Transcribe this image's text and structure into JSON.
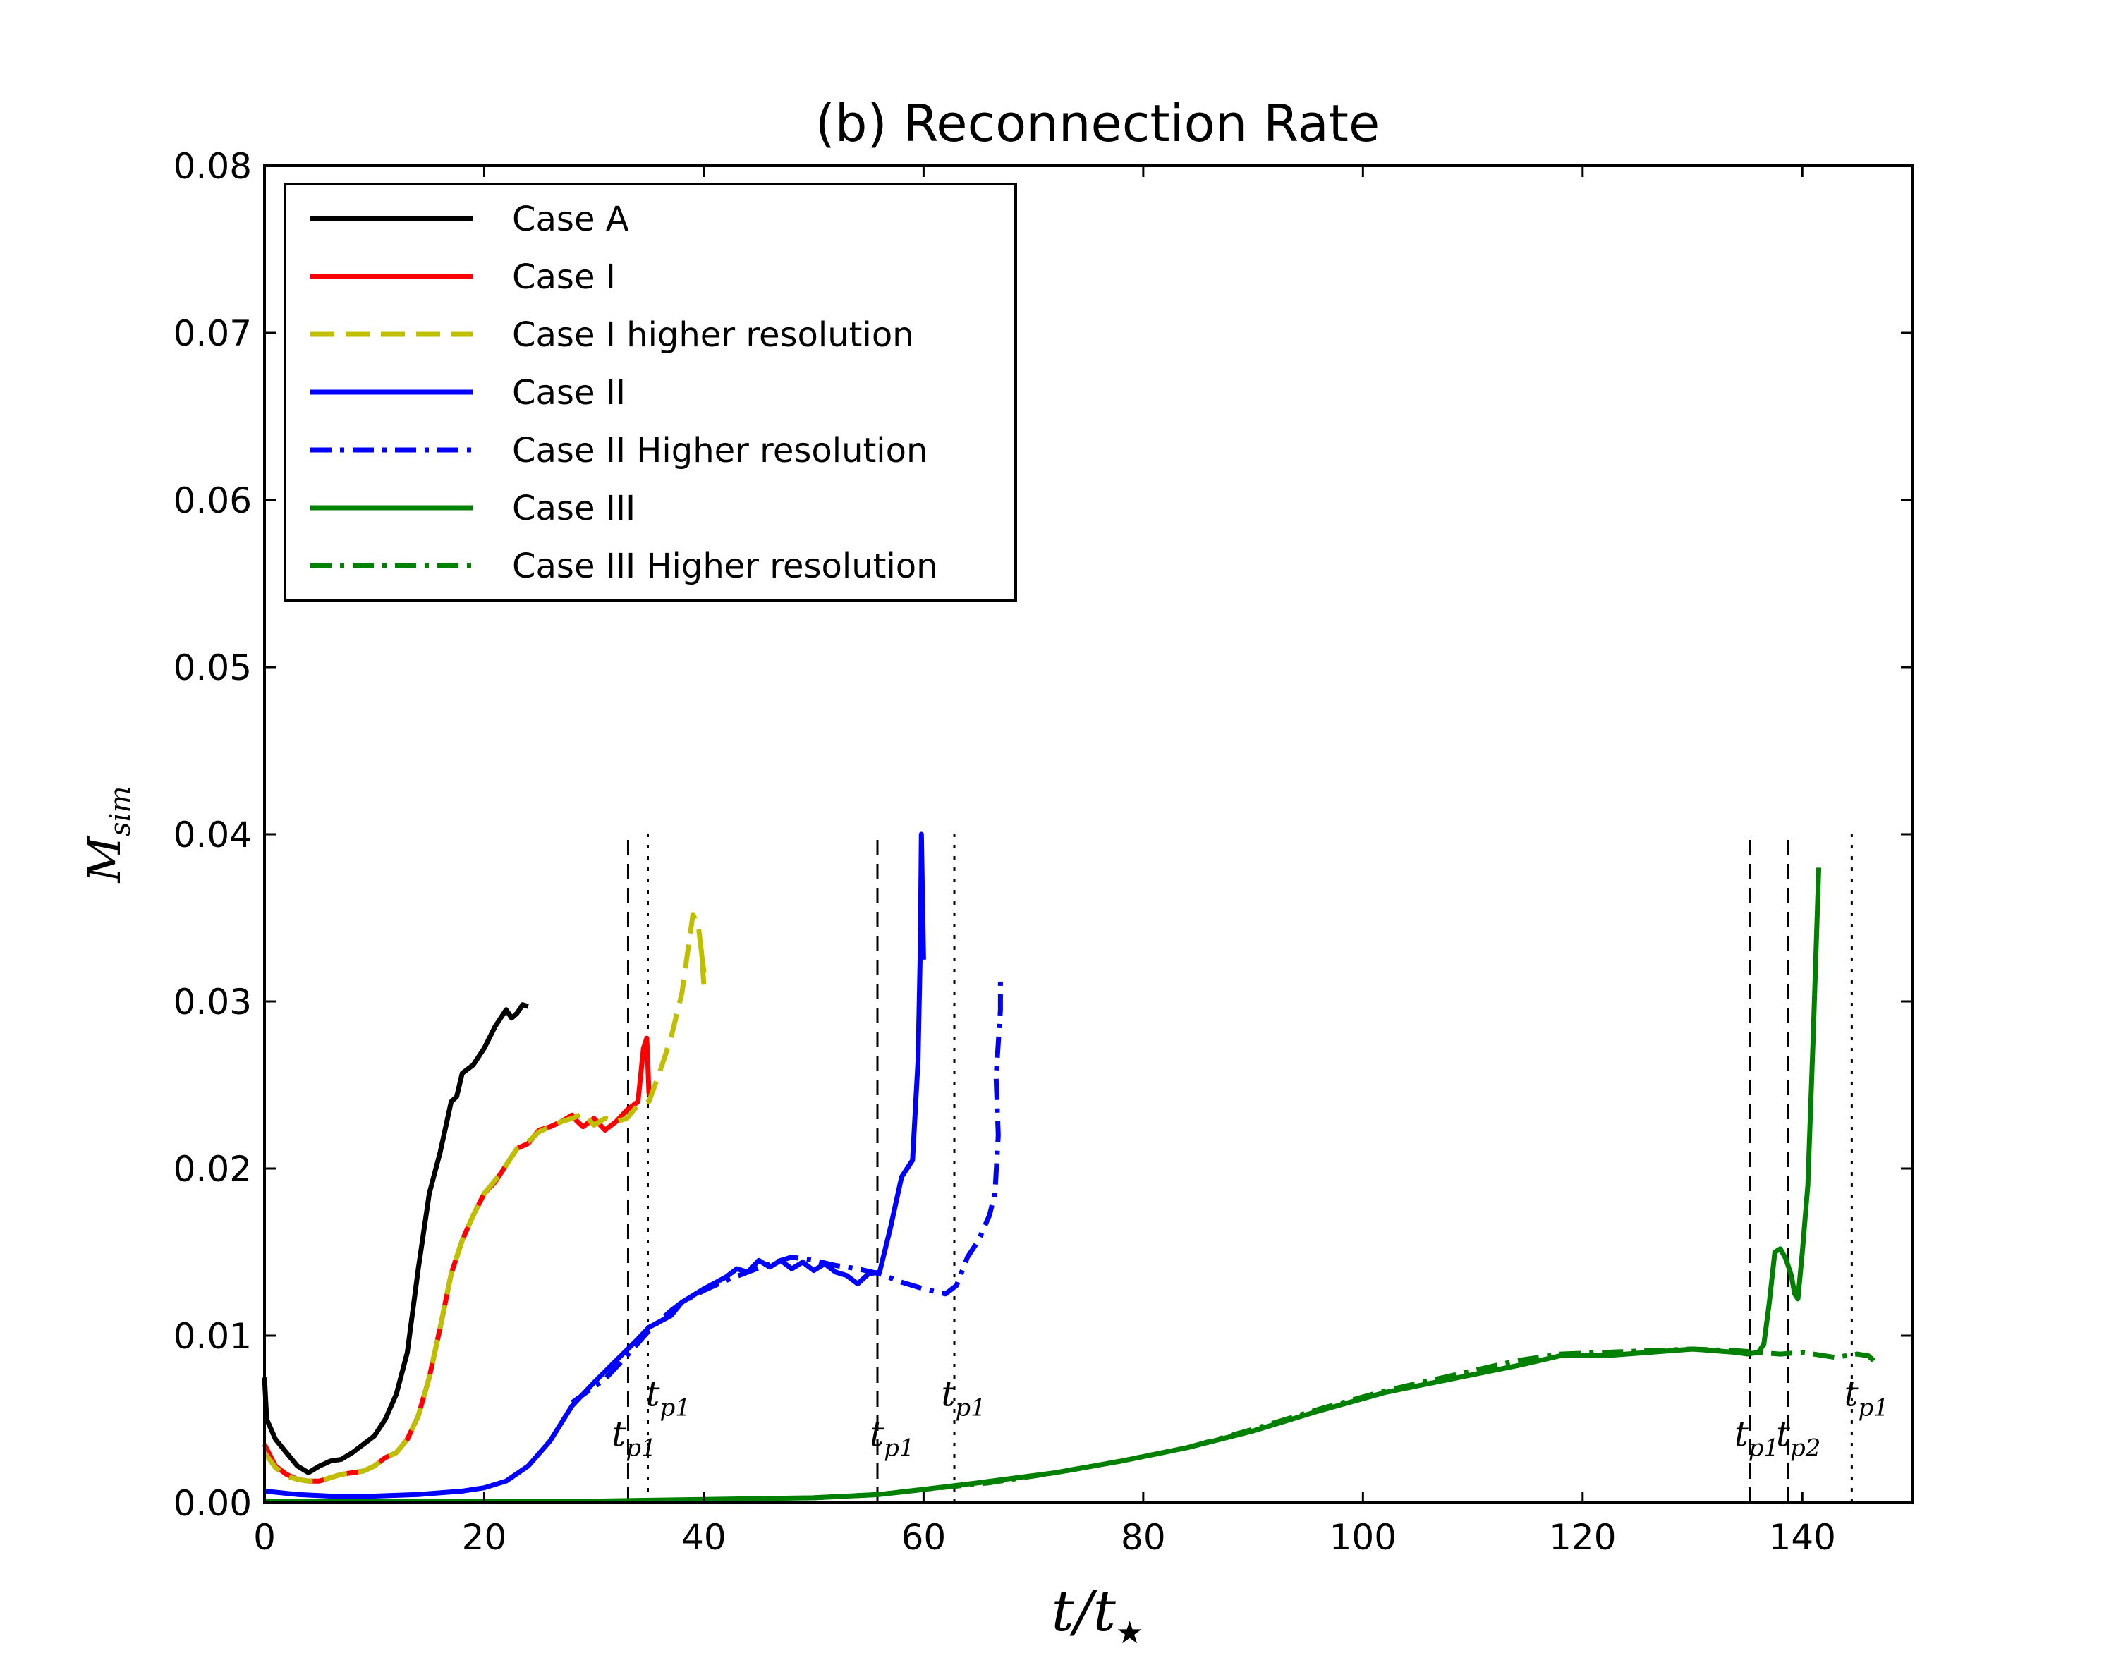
{
  "chart_data": {
    "type": "line",
    "title": "(b) Reconnection Rate",
    "xlabel": {
      "main": "t/t",
      "sub": "★"
    },
    "ylabel": {
      "main": "M",
      "sub": "sim"
    },
    "xlim": [
      0,
      150
    ],
    "ylim": [
      0,
      0.08
    ],
    "xticks": [
      0,
      20,
      40,
      60,
      80,
      100,
      120,
      140
    ],
    "xtick_labels": [
      "0",
      "20",
      "40",
      "60",
      "80",
      "100",
      "120",
      "140"
    ],
    "yticks": [
      0,
      0.01,
      0.02,
      0.03,
      0.04,
      0.05,
      0.06,
      0.07,
      0.08
    ],
    "ytick_labels": [
      "0.00",
      "0.01",
      "0.02",
      "0.03",
      "0.04",
      "0.05",
      "0.06",
      "0.07",
      "0.08"
    ],
    "grid": false,
    "legend_position": "top-left",
    "series": [
      {
        "name": "Case A",
        "color": "#000000",
        "style": "solid",
        "points": [
          [
            0,
            0.0075
          ],
          [
            0.2,
            0.005
          ],
          [
            1,
            0.0038
          ],
          [
            2,
            0.003
          ],
          [
            3,
            0.0022
          ],
          [
            4,
            0.0018
          ],
          [
            5,
            0.0022
          ],
          [
            6,
            0.0025
          ],
          [
            7,
            0.0026
          ],
          [
            8,
            0.003
          ],
          [
            9,
            0.0035
          ],
          [
            10,
            0.004
          ],
          [
            11,
            0.005
          ],
          [
            12,
            0.0065
          ],
          [
            13,
            0.009
          ],
          [
            14,
            0.014
          ],
          [
            15,
            0.0185
          ],
          [
            16,
            0.021
          ],
          [
            17,
            0.024
          ],
          [
            17.5,
            0.0243
          ],
          [
            18,
            0.0257
          ],
          [
            19,
            0.0262
          ],
          [
            20,
            0.0272
          ],
          [
            21,
            0.0285
          ],
          [
            22,
            0.0295
          ],
          [
            22.5,
            0.029
          ],
          [
            23,
            0.0293
          ],
          [
            23.5,
            0.0298
          ],
          [
            24,
            0.0297
          ]
        ]
      },
      {
        "name": "Case I",
        "color": "#ff0000",
        "style": "solid",
        "points": [
          [
            0,
            0.0035
          ],
          [
            1,
            0.0022
          ],
          [
            2,
            0.0017
          ],
          [
            3,
            0.0014
          ],
          [
            4,
            0.0013
          ],
          [
            5,
            0.0013
          ],
          [
            6,
            0.0015
          ],
          [
            7,
            0.0017
          ],
          [
            8,
            0.0018
          ],
          [
            9,
            0.0019
          ],
          [
            10,
            0.0022
          ],
          [
            11,
            0.0027
          ],
          [
            12,
            0.003
          ],
          [
            13,
            0.0038
          ],
          [
            14,
            0.0052
          ],
          [
            15,
            0.0075
          ],
          [
            16,
            0.0105
          ],
          [
            17,
            0.0137
          ],
          [
            18,
            0.0157
          ],
          [
            19,
            0.0172
          ],
          [
            20,
            0.0185
          ],
          [
            21,
            0.0192
          ],
          [
            22,
            0.0202
          ],
          [
            23,
            0.0212
          ],
          [
            24,
            0.0215
          ],
          [
            25,
            0.0223
          ],
          [
            26,
            0.0225
          ],
          [
            27,
            0.0228
          ],
          [
            28,
            0.0232
          ],
          [
            28.5,
            0.0228
          ],
          [
            29,
            0.0225
          ],
          [
            30,
            0.023
          ],
          [
            31,
            0.0223
          ],
          [
            32,
            0.0228
          ],
          [
            33,
            0.0235
          ],
          [
            34,
            0.024
          ],
          [
            34.5,
            0.0272
          ],
          [
            34.8,
            0.0278
          ],
          [
            35,
            0.0245
          ],
          [
            35.3,
            0.0243
          ]
        ]
      },
      {
        "name": "Case I higher resolution",
        "color": "#bfbf00",
        "style": "dashed",
        "points": [
          [
            0,
            0.003
          ],
          [
            1,
            0.0021
          ],
          [
            2,
            0.0016
          ],
          [
            3,
            0.0014
          ],
          [
            4,
            0.0013
          ],
          [
            5,
            0.0013
          ],
          [
            6,
            0.0015
          ],
          [
            7,
            0.0017
          ],
          [
            8,
            0.0018
          ],
          [
            9,
            0.0019
          ],
          [
            10,
            0.0022
          ],
          [
            11,
            0.0027
          ],
          [
            12,
            0.003
          ],
          [
            13,
            0.0038
          ],
          [
            14,
            0.0052
          ],
          [
            15,
            0.0075
          ],
          [
            16,
            0.0105
          ],
          [
            17,
            0.0137
          ],
          [
            18,
            0.0157
          ],
          [
            19,
            0.0172
          ],
          [
            20,
            0.0185
          ],
          [
            21,
            0.0193
          ],
          [
            22,
            0.0202
          ],
          [
            23,
            0.0212
          ],
          [
            24,
            0.0216
          ],
          [
            25,
            0.0222
          ],
          [
            26,
            0.0225
          ],
          [
            27,
            0.0228
          ],
          [
            28,
            0.023
          ],
          [
            29,
            0.0233
          ],
          [
            30,
            0.0226
          ],
          [
            31,
            0.023
          ],
          [
            32,
            0.0228
          ],
          [
            33,
            0.023
          ],
          [
            34,
            0.0238
          ],
          [
            35,
            0.024
          ],
          [
            36,
            0.0258
          ],
          [
            37,
            0.0278
          ],
          [
            38,
            0.0305
          ],
          [
            39,
            0.0352
          ],
          [
            39.5,
            0.0345
          ],
          [
            40,
            0.0318
          ],
          [
            39.8,
            0.0328
          ],
          [
            40,
            0.031
          ]
        ]
      },
      {
        "name": "Case II",
        "color": "#0000ff",
        "style": "solid",
        "points": [
          [
            0,
            0.0007
          ],
          [
            3,
            0.0005
          ],
          [
            6,
            0.0004
          ],
          [
            10,
            0.0004
          ],
          [
            14,
            0.0005
          ],
          [
            18,
            0.0007
          ],
          [
            20,
            0.0009
          ],
          [
            22,
            0.0013
          ],
          [
            24,
            0.0022
          ],
          [
            26,
            0.0037
          ],
          [
            28,
            0.0058
          ],
          [
            30,
            0.0072
          ],
          [
            32,
            0.0085
          ],
          [
            34,
            0.0098
          ],
          [
            35,
            0.0105
          ],
          [
            37,
            0.0112
          ],
          [
            38,
            0.012
          ],
          [
            40,
            0.0128
          ],
          [
            42,
            0.0135
          ],
          [
            43,
            0.014
          ],
          [
            44,
            0.0138
          ],
          [
            45,
            0.0145
          ],
          [
            46,
            0.0141
          ],
          [
            47,
            0.0145
          ],
          [
            48,
            0.014
          ],
          [
            49,
            0.0144
          ],
          [
            50,
            0.0139
          ],
          [
            51,
            0.0143
          ],
          [
            52,
            0.0138
          ],
          [
            53,
            0.0136
          ],
          [
            54,
            0.0131
          ],
          [
            55,
            0.0137
          ],
          [
            56,
            0.0138
          ],
          [
            57,
            0.0165
          ],
          [
            58,
            0.0195
          ],
          [
            59,
            0.0205
          ],
          [
            59.5,
            0.0265
          ],
          [
            59.7,
            0.033
          ],
          [
            59.8,
            0.04
          ],
          [
            60,
            0.0325
          ]
        ]
      },
      {
        "name": "Case II Higher resolution",
        "color": "#0000ff",
        "style": "dashdot",
        "points": [
          [
            28,
            0.006
          ],
          [
            31,
            0.0074
          ],
          [
            33,
            0.0088
          ],
          [
            35,
            0.0103
          ],
          [
            37,
            0.0115
          ],
          [
            38,
            0.012
          ],
          [
            40,
            0.0127
          ],
          [
            42,
            0.0133
          ],
          [
            44,
            0.0138
          ],
          [
            46,
            0.0143
          ],
          [
            48,
            0.0147
          ],
          [
            50,
            0.0145
          ],
          [
            52,
            0.0142
          ],
          [
            54,
            0.014
          ],
          [
            56,
            0.0137
          ],
          [
            58,
            0.0132
          ],
          [
            60,
            0.0128
          ],
          [
            62,
            0.0125
          ],
          [
            63,
            0.013
          ],
          [
            64,
            0.0147
          ],
          [
            65,
            0.0157
          ],
          [
            66,
            0.0172
          ],
          [
            66.5,
            0.0185
          ],
          [
            66.8,
            0.022
          ],
          [
            66.6,
            0.0255
          ],
          [
            67,
            0.0295
          ],
          [
            67,
            0.0315
          ]
        ]
      },
      {
        "name": "Case III",
        "color": "#008000",
        "style": "solid",
        "points": [
          [
            0,
            0.0001
          ],
          [
            10,
            0.0001
          ],
          [
            20,
            0.0001
          ],
          [
            30,
            0.0001
          ],
          [
            40,
            0.0002
          ],
          [
            50,
            0.0003
          ],
          [
            56,
            0.0005
          ],
          [
            60,
            0.0008
          ],
          [
            65,
            0.0012
          ],
          [
            72,
            0.0018
          ],
          [
            78,
            0.0025
          ],
          [
            84,
            0.0033
          ],
          [
            90,
            0.0043
          ],
          [
            96,
            0.0055
          ],
          [
            102,
            0.0066
          ],
          [
            108,
            0.0074
          ],
          [
            114,
            0.0082
          ],
          [
            118,
            0.0088
          ],
          [
            122,
            0.0088
          ],
          [
            126,
            0.009
          ],
          [
            130,
            0.0092
          ],
          [
            134,
            0.009
          ],
          [
            135,
            0.0089
          ],
          [
            136,
            0.009
          ],
          [
            136.5,
            0.0095
          ],
          [
            137,
            0.012
          ],
          [
            137.5,
            0.015
          ],
          [
            138,
            0.0152
          ],
          [
            138.5,
            0.0146
          ],
          [
            139,
            0.0136
          ],
          [
            139.3,
            0.0125
          ],
          [
            139.6,
            0.0122
          ],
          [
            140,
            0.015
          ],
          [
            140.5,
            0.019
          ],
          [
            141,
            0.028
          ],
          [
            141.5,
            0.038
          ]
        ]
      },
      {
        "name": "Case III Higher resolution",
        "color": "#008000",
        "style": "dashdot",
        "points": [
          [
            50,
            0.0003
          ],
          [
            56,
            0.0005
          ],
          [
            60,
            0.0008
          ],
          [
            66,
            0.0012
          ],
          [
            72,
            0.0018
          ],
          [
            78,
            0.0025
          ],
          [
            84,
            0.0033
          ],
          [
            90,
            0.0044
          ],
          [
            96,
            0.0056
          ],
          [
            102,
            0.0067
          ],
          [
            108,
            0.0076
          ],
          [
            114,
            0.0085
          ],
          [
            118,
            0.0089
          ],
          [
            122,
            0.009
          ],
          [
            126,
            0.0091
          ],
          [
            130,
            0.0092
          ],
          [
            134,
            0.0091
          ],
          [
            136,
            0.009
          ],
          [
            138,
            0.0089
          ],
          [
            140,
            0.009
          ],
          [
            142,
            0.0088
          ],
          [
            143,
            0.0087
          ],
          [
            144,
            0.0088
          ],
          [
            145,
            0.0089
          ],
          [
            146,
            0.0088
          ],
          [
            146.5,
            0.0085
          ]
        ]
      }
    ],
    "vlines": [
      {
        "x": 33.1,
        "style": "dashed",
        "ymax": 0.04
      },
      {
        "x": 34.9,
        "style": "dotted",
        "ymax": 0.04
      },
      {
        "x": 55.8,
        "style": "dashed",
        "ymax": 0.04
      },
      {
        "x": 62.8,
        "style": "dotted",
        "ymax": 0.04
      },
      {
        "x": 135.2,
        "style": "dashed",
        "ymax": 0.04
      },
      {
        "x": 138.7,
        "style": "dashed",
        "ymax": 0.04
      },
      {
        "x": 144.5,
        "style": "dotted",
        "ymax": 0.04
      }
    ],
    "annotations": [
      {
        "text": "t",
        "sub": "p1",
        "x": 34.7,
        "y": 0.0058
      },
      {
        "text": "t",
        "sub": "p1",
        "x": 31.6,
        "y": 0.0034
      },
      {
        "text": "t",
        "sub": "p1",
        "x": 61.6,
        "y": 0.0058
      },
      {
        "text": "t",
        "sub": "p1",
        "x": 55.1,
        "y": 0.0034
      },
      {
        "text": "t",
        "sub": "p1",
        "x": 143.8,
        "y": 0.0058
      },
      {
        "text": "t",
        "sub": "p1",
        "x": 133.8,
        "y": 0.0034
      },
      {
        "text": "t",
        "sub": "p2",
        "x": 137.6,
        "y": 0.0034
      }
    ]
  }
}
